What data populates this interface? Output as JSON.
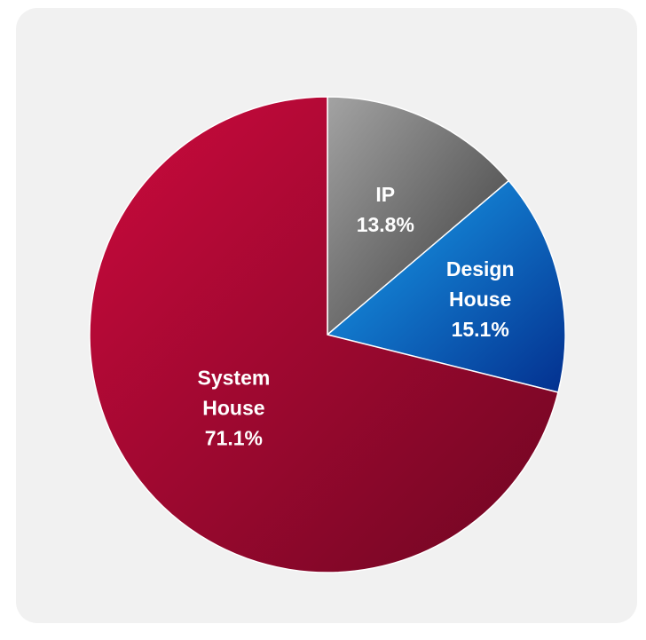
{
  "chart_data": {
    "type": "pie",
    "title": "",
    "start_angle_deg": 0,
    "direction": "clockwise",
    "slices": [
      {
        "name": "IP",
        "label_lines": [
          "IP",
          "13.8%"
        ],
        "value": 13.8,
        "colors": [
          "#a3a3a3",
          "#3a3a3a"
        ]
      },
      {
        "name": "Design House",
        "label_lines": [
          "Design",
          "House",
          "15.1%"
        ],
        "value": 15.1,
        "colors": [
          "#1aa3ef",
          "#03308f"
        ]
      },
      {
        "name": "System House",
        "label_lines": [
          "System",
          "House",
          "71.1%"
        ],
        "value": 71.1,
        "colors": [
          "#cc0a3d",
          "#6e0622"
        ]
      }
    ]
  }
}
